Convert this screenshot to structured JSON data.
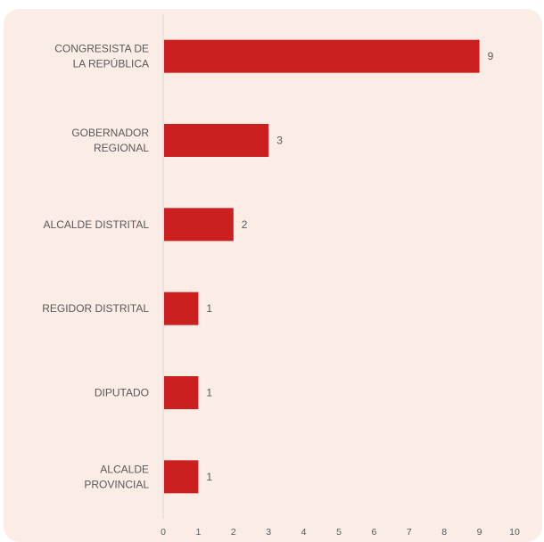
{
  "chart_data": {
    "type": "bar",
    "orientation": "horizontal",
    "categories": [
      [
        "CONGRESISTA DE",
        "LA REPÚBLICA"
      ],
      [
        "GOBERNADOR",
        "REGIONAL"
      ],
      [
        "ALCALDE DISTRITAL"
      ],
      [
        "REGIDOR DISTRITAL"
      ],
      [
        "DIPUTADO"
      ],
      [
        "ALCALDE",
        "PROVINCIAL"
      ]
    ],
    "values": [
      9,
      3,
      2,
      1,
      1,
      1
    ],
    "xlim": [
      0,
      10
    ],
    "xticks": [
      0,
      1,
      2,
      3,
      4,
      5,
      6,
      7,
      8,
      9,
      10
    ],
    "grid": false,
    "bar_color": "#cc1f1f",
    "background_color": "#fbece6",
    "axis_color": "#d9d9d9"
  }
}
